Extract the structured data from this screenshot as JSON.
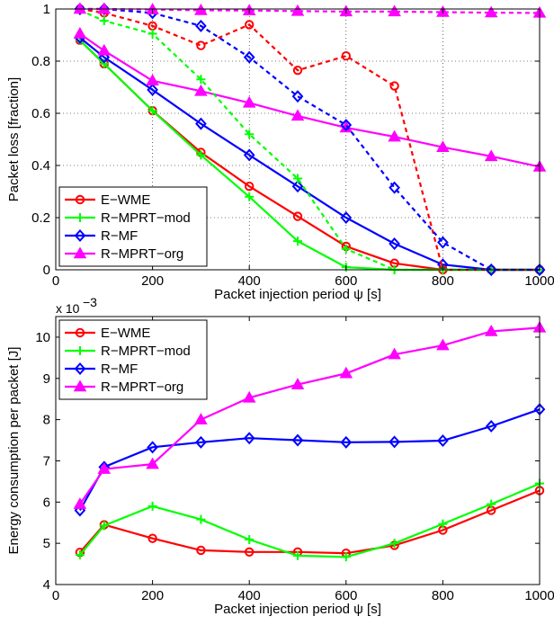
{
  "chart_data": [
    {
      "type": "line",
      "xlabel": "Packet injection period ψ [s]",
      "ylabel": "Packet loss [fraction]",
      "xlim": [
        0,
        1000
      ],
      "ylim": [
        0,
        1
      ],
      "xticks": [
        0,
        200,
        400,
        600,
        800,
        1000
      ],
      "yticks": [
        0,
        0.2,
        0.4,
        0.6,
        0.8,
        1
      ],
      "ytick_labels": [
        "0",
        "0.2",
        "0.4",
        "0.6",
        "0.8",
        "1"
      ],
      "grid": true,
      "legend_position": "bottom-left",
      "series": [
        {
          "name": "E−WME",
          "color": "#ff0000",
          "marker": "circle",
          "style": "solid",
          "x": [
            50,
            100,
            200,
            300,
            400,
            500,
            600,
            700,
            800,
            900,
            1000
          ],
          "y": [
            0.88,
            0.79,
            0.61,
            0.45,
            0.32,
            0.205,
            0.09,
            0.025,
            0.0,
            0.0,
            0.0
          ]
        },
        {
          "name": "R−MPRT−mod",
          "color": "#00ff00",
          "marker": "plus",
          "style": "solid",
          "x": [
            50,
            100,
            200,
            300,
            400,
            500,
            600,
            700,
            800,
            900,
            1000
          ],
          "y": [
            0.88,
            0.79,
            0.61,
            0.44,
            0.28,
            0.11,
            0.01,
            0.0,
            0.0,
            0.0,
            0.0
          ]
        },
        {
          "name": "R−MF",
          "color": "#0000ff",
          "marker": "diamond",
          "style": "solid",
          "x": [
            50,
            100,
            200,
            300,
            400,
            500,
            600,
            700,
            800,
            900,
            1000
          ],
          "y": [
            0.89,
            0.815,
            0.69,
            0.56,
            0.44,
            0.32,
            0.2,
            0.1,
            0.02,
            0.0,
            0.0
          ]
        },
        {
          "name": "R−MPRT−org",
          "color": "#ff00ff",
          "marker": "triangle",
          "style": "solid",
          "x": [
            50,
            100,
            200,
            300,
            400,
            500,
            600,
            700,
            800,
            900,
            1000
          ],
          "y": [
            0.905,
            0.84,
            0.725,
            0.685,
            0.64,
            0.59,
            0.545,
            0.51,
            0.47,
            0.435,
            0.395
          ]
        },
        {
          "color": "#ff0000",
          "marker": "circle",
          "style": "dashed",
          "x": [
            50,
            100,
            200,
            300,
            400,
            500,
            600,
            700,
            800,
            900,
            1000
          ],
          "y": [
            1.0,
            0.985,
            0.935,
            0.86,
            0.94,
            0.765,
            0.82,
            0.705,
            0.0,
            0.0,
            0.0
          ]
        },
        {
          "color": "#00ff00",
          "marker": "plus",
          "style": "dashed",
          "x": [
            50,
            100,
            200,
            300,
            400,
            500,
            600,
            700,
            800,
            900,
            1000
          ],
          "y": [
            0.995,
            0.955,
            0.905,
            0.73,
            0.52,
            0.35,
            0.08,
            0.0,
            0.0,
            0.0,
            0.0
          ]
        },
        {
          "color": "#0000ff",
          "marker": "diamond",
          "style": "dashed",
          "x": [
            50,
            100,
            200,
            300,
            400,
            500,
            600,
            700,
            800,
            900,
            1000
          ],
          "y": [
            1.0,
            1.0,
            0.985,
            0.935,
            0.815,
            0.665,
            0.555,
            0.315,
            0.105,
            0.0,
            0.0
          ]
        },
        {
          "color": "#ff00ff",
          "marker": "triangle",
          "style": "dashed",
          "x": [
            50,
            100,
            200,
            300,
            400,
            500,
            600,
            700,
            800,
            900,
            1000
          ],
          "y": [
            1.0,
            1.0,
            0.998,
            0.995,
            0.994,
            0.992,
            0.99,
            0.99,
            0.988,
            0.986,
            0.985
          ]
        }
      ]
    },
    {
      "type": "line",
      "xlabel": "Packet injection period ψ [s]",
      "ylabel": "Energy consumption per packet [J]",
      "y_exponent_label": "x 10",
      "y_exponent_power": "−3",
      "xlim": [
        0,
        1000
      ],
      "ylim": [
        4,
        10.5
      ],
      "xticks": [
        0,
        200,
        400,
        600,
        800,
        1000
      ],
      "yticks": [
        4,
        5,
        6,
        7,
        8,
        9,
        10
      ],
      "ytick_labels": [
        "4",
        "5",
        "6",
        "7",
        "8",
        "9",
        "10"
      ],
      "grid": false,
      "legend_position": "top-left",
      "series": [
        {
          "name": "E−WME",
          "color": "#ff0000",
          "marker": "circle",
          "style": "solid",
          "x": [
            50,
            100,
            200,
            300,
            400,
            500,
            600,
            700,
            800,
            900,
            1000
          ],
          "y": [
            4.78,
            5.45,
            5.12,
            4.83,
            4.79,
            4.79,
            4.76,
            4.95,
            5.32,
            5.8,
            6.28
          ]
        },
        {
          "name": "R−MPRT−mod",
          "color": "#00ff00",
          "marker": "plus",
          "style": "solid",
          "x": [
            50,
            100,
            200,
            300,
            400,
            500,
            600,
            700,
            800,
            900,
            1000
          ],
          "y": [
            4.72,
            5.43,
            5.9,
            5.58,
            5.09,
            4.7,
            4.67,
            5.0,
            5.47,
            5.95,
            6.45
          ]
        },
        {
          "name": "R−MF",
          "color": "#0000ff",
          "marker": "diamond",
          "style": "solid",
          "x": [
            50,
            100,
            200,
            300,
            400,
            500,
            600,
            700,
            800,
            900,
            1000
          ],
          "y": [
            5.8,
            6.85,
            7.33,
            7.45,
            7.55,
            7.5,
            7.45,
            7.46,
            7.49,
            7.84,
            8.25
          ]
        },
        {
          "name": "R−MPRT−org",
          "color": "#ff00ff",
          "marker": "triangle",
          "style": "solid",
          "x": [
            50,
            100,
            200,
            300,
            400,
            500,
            600,
            700,
            800,
            900,
            1000
          ],
          "y": [
            5.95,
            6.8,
            6.92,
            8.0,
            8.53,
            8.85,
            9.12,
            9.58,
            9.8,
            10.14,
            10.23
          ]
        }
      ]
    }
  ]
}
